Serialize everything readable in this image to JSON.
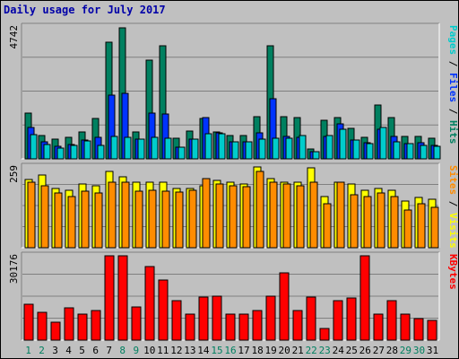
{
  "title": "Daily usage for July 2017",
  "colors": {
    "background": "#c0c0c0",
    "title": "#0000a8",
    "pages": "#00cccc",
    "files": "#0033ff",
    "hits": "#008060",
    "visits": "#ffff00",
    "sites": "#ff8c00",
    "kbytes": "#ff0000",
    "weekend_day_label": "#008060",
    "weekday_label": "#000000"
  },
  "chart_data": [
    {
      "type": "bar",
      "name": "hits-files-pages",
      "ymax_label": "4742",
      "ylim": [
        0,
        4742
      ],
      "legend": [
        {
          "key": "pages",
          "text": "Pages",
          "color": "#00cccc"
        },
        {
          "key": "sep",
          "text": " / ",
          "color": "#000000"
        },
        {
          "key": "files",
          "text": "Files",
          "color": "#0033ff"
        },
        {
          "key": "sep",
          "text": " / ",
          "color": "#000000"
        },
        {
          "key": "hits",
          "text": "Hits",
          "color": "#008060"
        }
      ],
      "series": [
        {
          "name": "Hits",
          "values": [
            1640,
            840,
            700,
            760,
            980,
            1460,
            4200,
            4700,
            980,
            3560,
            4050,
            750,
            1010,
            1460,
            960,
            840,
            850,
            1530,
            4060,
            1530,
            1480,
            350,
            1380,
            1480,
            1110,
            780,
            1940,
            1480,
            810,
            800,
            730
          ]
        },
        {
          "name": "Files",
          "values": [
            1120,
            610,
            440,
            530,
            680,
            760,
            2280,
            2340,
            710,
            1650,
            1620,
            420,
            700,
            1480,
            920,
            600,
            620,
            920,
            2160,
            800,
            790,
            250,
            800,
            1260,
            670,
            570,
            1070,
            820,
            550,
            590,
            470
          ]
        },
        {
          "name": "Pages",
          "values": [
            860,
            520,
            400,
            500,
            650,
            500,
            800,
            790,
            700,
            790,
            740,
            410,
            700,
            890,
            890,
            610,
            620,
            700,
            740,
            740,
            850,
            250,
            830,
            1080,
            670,
            560,
            1140,
            620,
            550,
            490,
            450
          ]
        }
      ]
    },
    {
      "type": "bar",
      "name": "visits-sites",
      "ymax_label": "259",
      "ylim": [
        0,
        259
      ],
      "legend": [
        {
          "key": "sites",
          "text": "Sites",
          "color": "#ff8c00"
        },
        {
          "key": "sep",
          "text": " / ",
          "color": "#000000"
        },
        {
          "key": "visits",
          "text": "Visits",
          "color": "#ffff00"
        }
      ],
      "series": [
        {
          "name": "Visits",
          "values": [
            218,
            232,
            190,
            185,
            205,
            200,
            245,
            228,
            210,
            210,
            210,
            190,
            190,
            200,
            215,
            210,
            205,
            259,
            222,
            210,
            210,
            255,
            165,
            210,
            205,
            185,
            190,
            185,
            150,
            160,
            155
          ]
        },
        {
          "name": "Sites",
          "values": [
            210,
            200,
            175,
            165,
            180,
            175,
            210,
            210,
            180,
            185,
            182,
            178,
            183,
            222,
            205,
            200,
            195,
            245,
            210,
            205,
            200,
            210,
            140,
            210,
            170,
            165,
            176,
            165,
            120,
            140,
            130
          ]
        }
      ]
    },
    {
      "type": "bar",
      "name": "kbytes",
      "ymax_label": "30176",
      "ylim": [
        0,
        30176
      ],
      "legend": [
        {
          "key": "kbytes",
          "text": "KBytes",
          "color": "#ff0000"
        }
      ],
      "series": [
        {
          "name": "KBytes",
          "values": [
            13000,
            10000,
            6500,
            11700,
            9200,
            10500,
            30176,
            30176,
            11800,
            26400,
            21600,
            14200,
            9300,
            15400,
            15700,
            9300,
            9200,
            10700,
            15800,
            24000,
            10500,
            15500,
            4200,
            14200,
            15200,
            30176,
            9300,
            14200,
            9200,
            7800,
            7200
          ]
        }
      ]
    }
  ],
  "x_axis": {
    "labels": [
      "1",
      "2",
      "3",
      "4",
      "5",
      "6",
      "7",
      "8",
      "9",
      "10",
      "11",
      "12",
      "13",
      "14",
      "15",
      "16",
      "17",
      "18",
      "19",
      "20",
      "21",
      "22",
      "23",
      "24",
      "25",
      "26",
      "27",
      "28",
      "29",
      "30",
      "31"
    ],
    "weekend_days": [
      "1",
      "2",
      "8",
      "9",
      "15",
      "16",
      "22",
      "23",
      "29",
      "30"
    ]
  }
}
